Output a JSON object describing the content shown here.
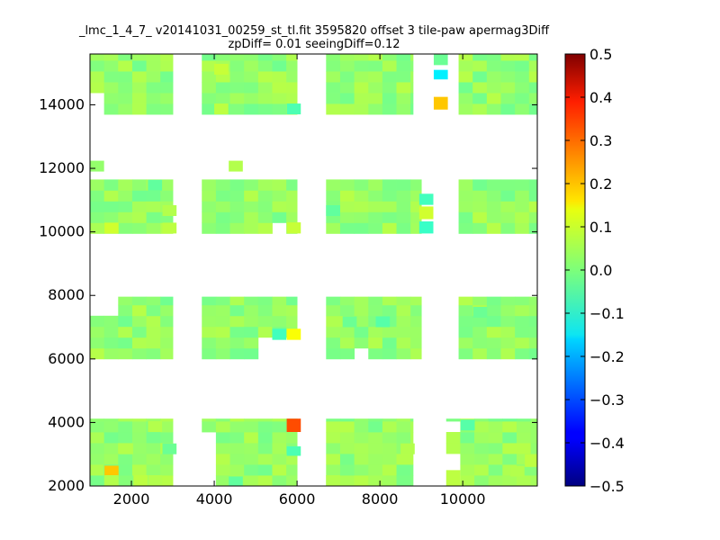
{
  "chart_data": {
    "type": "heatmap",
    "title_line1": "_lmc_1_4_7_ v20141031_00259_st_tl.fit 3595820 offset 3 tile-paw apermag3Diff",
    "title_line2": "zpDiff= 0.01 seeingDiff=0.12",
    "xlabel": "",
    "ylabel": "",
    "xlim": [
      1000,
      11800
    ],
    "ylim": [
      2000,
      15600
    ],
    "x_ticks": [
      2000,
      4000,
      6000,
      8000,
      10000
    ],
    "y_ticks": [
      2000,
      4000,
      6000,
      8000,
      10000,
      12000,
      14000
    ],
    "colorbar": {
      "colormap": "jet",
      "vmin": -0.5,
      "vmax": 0.5,
      "ticks": [
        "0.5",
        "0.4",
        "0.3",
        "0.2",
        "0.1",
        "0.0",
        "−0.1",
        "−0.2",
        "−0.3",
        "−0.4",
        "−0.5"
      ]
    },
    "cell_size": 340,
    "base_value": 0.02,
    "groups": [
      {
        "x": [
          1000,
          3000
        ],
        "y": [
          2000,
          4120
        ]
      },
      {
        "x": [
          3700,
          6000
        ],
        "y": [
          2000,
          4120
        ]
      },
      {
        "x": [
          6700,
          8800
        ],
        "y": [
          2000,
          4120
        ]
      },
      {
        "x": [
          9600,
          11800
        ],
        "y": [
          2000,
          4120
        ]
      },
      {
        "x": [
          1000,
          3000
        ],
        "y": [
          6000,
          7960
        ]
      },
      {
        "x": [
          3700,
          6000
        ],
        "y": [
          6000,
          7960
        ]
      },
      {
        "x": [
          6700,
          9000
        ],
        "y": [
          6000,
          7960
        ]
      },
      {
        "x": [
          9900,
          11800
        ],
        "y": [
          6000,
          7960
        ]
      },
      {
        "x": [
          1000,
          3000
        ],
        "y": [
          9950,
          12250
        ]
      },
      {
        "x": [
          3700,
          6000
        ],
        "y": [
          9950,
          12250
        ]
      },
      {
        "x": [
          6700,
          9000
        ],
        "y": [
          9950,
          12250
        ]
      },
      {
        "x": [
          9900,
          11800
        ],
        "y": [
          9950,
          12250
        ]
      },
      {
        "x": [
          1000,
          3000
        ],
        "y": [
          13700,
          15600
        ]
      },
      {
        "x": [
          3700,
          6000
        ],
        "y": [
          13700,
          15600
        ]
      },
      {
        "x": [
          6700,
          8800
        ],
        "y": [
          13700,
          15600
        ]
      },
      {
        "x": [
          9900,
          11800
        ],
        "y": [
          13700,
          15600
        ]
      }
    ],
    "blank_regions": [
      {
        "x": [
          1000,
          1350
        ],
        "y": [
          13700,
          14500
        ]
      },
      {
        "x": [
          1000,
          1700
        ],
        "y": [
          7400,
          7960
        ]
      },
      {
        "x": [
          1000,
          3000
        ],
        "y": [
          11600,
          12250
        ]
      },
      {
        "x": [
          3700,
          6000
        ],
        "y": [
          11600,
          12250
        ]
      },
      {
        "x": [
          6700,
          9000
        ],
        "y": [
          11600,
          12250
        ]
      },
      {
        "x": [
          9900,
          11800
        ],
        "y": [
          11600,
          12250
        ]
      },
      {
        "x": [
          3700,
          4000
        ],
        "y": [
          2000,
          3600
        ]
      },
      {
        "x": [
          5200,
          6000
        ],
        "y": [
          6000,
          6700
        ]
      },
      {
        "x": [
          7500,
          7800
        ],
        "y": [
          6000,
          6400
        ]
      },
      {
        "x": [
          5300,
          5600
        ],
        "y": [
          10000,
          10400
        ]
      },
      {
        "x": [
          9600,
          10000
        ],
        "y": [
          3700,
          4120
        ]
      },
      {
        "x": [
          9600,
          10000
        ],
        "y": [
          2000,
          2900
        ]
      }
    ],
    "special_cells": [
      {
        "x": 1000,
        "y": 11900,
        "w": 340,
        "h": 340,
        "value": 0.02
      },
      {
        "x": 4350,
        "y": 11900,
        "w": 340,
        "h": 340,
        "value": 0.05
      },
      {
        "x": 1350,
        "y": 2300,
        "w": 340,
        "h": 340,
        "value": 0.18
      },
      {
        "x": 5750,
        "y": 3700,
        "w": 340,
        "h": 420,
        "value": 0.3
      },
      {
        "x": 5750,
        "y": 6600,
        "w": 340,
        "h": 350,
        "value": 0.12
      },
      {
        "x": 5400,
        "y": 6600,
        "w": 340,
        "h": 350,
        "value": -0.06
      },
      {
        "x": 5750,
        "y": 2950,
        "w": 340,
        "h": 300,
        "value": -0.05
      },
      {
        "x": 5750,
        "y": 9950,
        "w": 340,
        "h": 350,
        "value": 0.07
      },
      {
        "x": 9300,
        "y": 14800,
        "w": 340,
        "h": 300,
        "value": -0.14
      },
      {
        "x": 9300,
        "y": 13850,
        "w": 340,
        "h": 400,
        "value": 0.18
      },
      {
        "x": 9300,
        "y": 15250,
        "w": 340,
        "h": 350,
        "value": -0.02
      },
      {
        "x": 8950,
        "y": 9950,
        "w": 340,
        "h": 380,
        "value": -0.07
      },
      {
        "x": 8950,
        "y": 10400,
        "w": 340,
        "h": 400,
        "value": 0.08
      },
      {
        "x": 8950,
        "y": 10850,
        "w": 340,
        "h": 350,
        "value": -0.06
      },
      {
        "x": 9600,
        "y": 2000,
        "w": 340,
        "h": 500,
        "value": 0.06
      },
      {
        "x": 9950,
        "y": 3750,
        "w": 340,
        "h": 340,
        "value": -0.04
      },
      {
        "x": 4000,
        "y": 14950,
        "w": 340,
        "h": 340,
        "value": 0.07
      },
      {
        "x": 4000,
        "y": 13700,
        "w": 340,
        "h": 340,
        "value": 0.06
      },
      {
        "x": 5750,
        "y": 13700,
        "w": 340,
        "h": 340,
        "value": -0.05
      },
      {
        "x": 4350,
        "y": 2000,
        "w": 340,
        "h": 300,
        "value": -0.03
      },
      {
        "x": 11500,
        "y": 2600,
        "w": 300,
        "h": 400,
        "value": 0.06
      },
      {
        "x": 1350,
        "y": 9950,
        "w": 340,
        "h": 340,
        "value": 0.08
      },
      {
        "x": 2750,
        "y": 9950,
        "w": 340,
        "h": 340,
        "value": 0.06
      },
      {
        "x": 2750,
        "y": 10500,
        "w": 340,
        "h": 340,
        "value": 0.05
      },
      {
        "x": 2400,
        "y": 11300,
        "w": 340,
        "h": 340,
        "value": -0.03
      },
      {
        "x": 6700,
        "y": 10500,
        "w": 340,
        "h": 340,
        "value": -0.03
      },
      {
        "x": 7900,
        "y": 7000,
        "w": 340,
        "h": 340,
        "value": -0.04
      },
      {
        "x": 7100,
        "y": 7000,
        "w": 340,
        "h": 340,
        "value": -0.02
      },
      {
        "x": 10250,
        "y": 7300,
        "w": 340,
        "h": 340,
        "value": -0.02
      },
      {
        "x": 1350,
        "y": 2000,
        "w": 340,
        "h": 340,
        "value": 0.05
      },
      {
        "x": 2050,
        "y": 2000,
        "w": 340,
        "h": 340,
        "value": 0.06
      },
      {
        "x": 2400,
        "y": 2000,
        "w": 340,
        "h": 340,
        "value": 0.05
      },
      {
        "x": 2400,
        "y": 3700,
        "w": 340,
        "h": 340,
        "value": 0.05
      },
      {
        "x": 1700,
        "y": 3000,
        "w": 340,
        "h": 340,
        "value": 0.05
      },
      {
        "x": 2750,
        "y": 3000,
        "w": 340,
        "h": 340,
        "value": -0.02
      },
      {
        "x": 6700,
        "y": 2000,
        "w": 340,
        "h": 340,
        "value": 0.05
      },
      {
        "x": 8500,
        "y": 3000,
        "w": 340,
        "h": 340,
        "value": 0.05
      },
      {
        "x": 11150,
        "y": 2300,
        "w": 340,
        "h": 340,
        "value": 0.05
      }
    ]
  }
}
